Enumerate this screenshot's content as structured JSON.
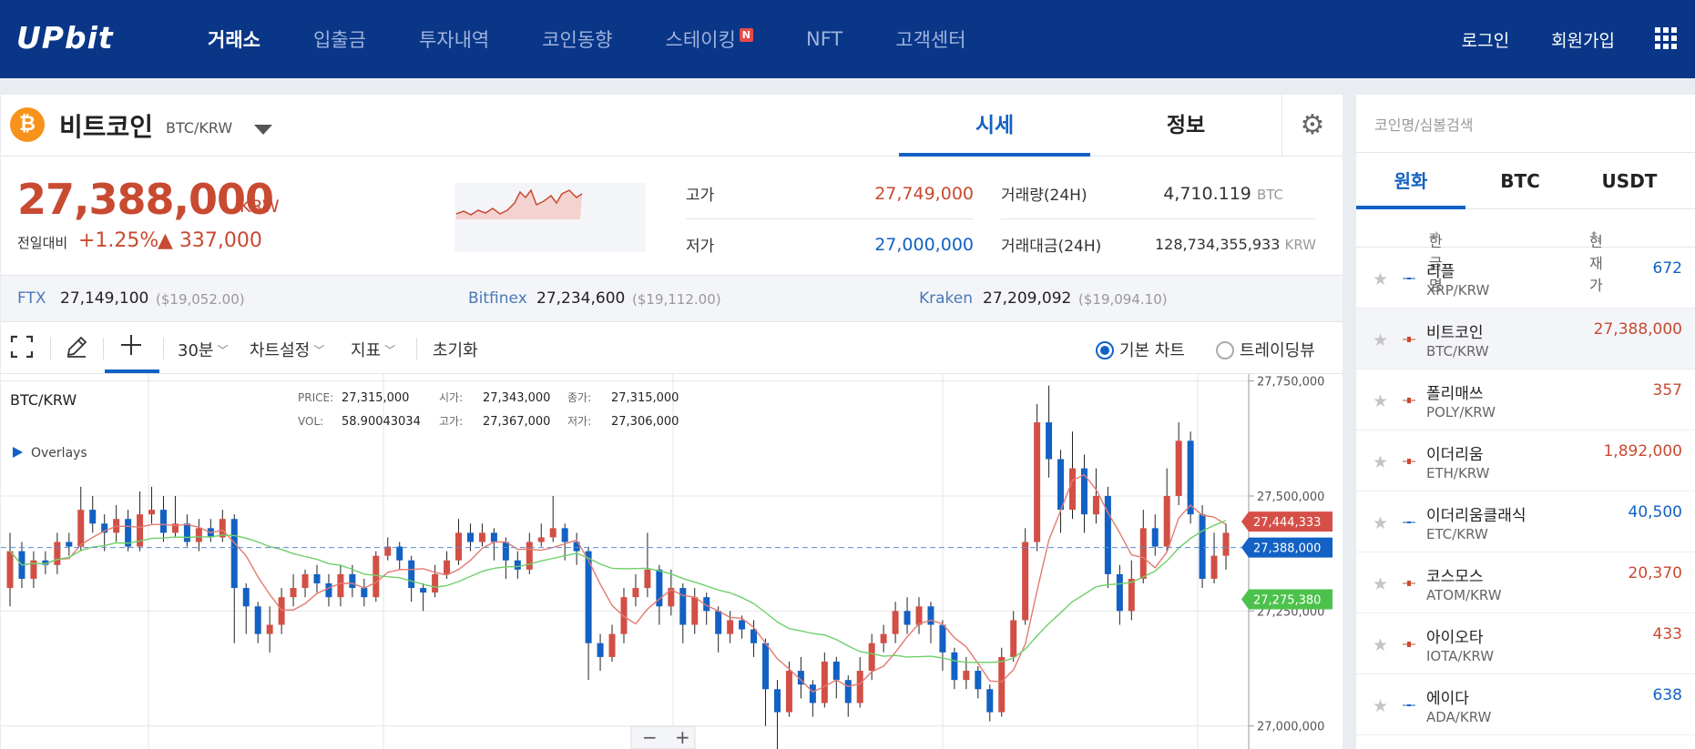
{
  "nav": {
    "logo": "UPbit",
    "items": [
      "거래소",
      "입출금",
      "투자내역",
      "코인동향",
      "스테이킹",
      "NFT",
      "고객센터"
    ],
    "badge": "N",
    "login": "로그인",
    "signup": "회원가입"
  },
  "coin": {
    "icon": "₿",
    "name": "비트코인",
    "pair": "BTC/KRW",
    "tab_price": "시세",
    "tab_info": "정보",
    "price": "27,388,000",
    "unit": "KRW",
    "change_label": "전일대비",
    "change_pct": "+1.25%",
    "change_amt": "▲ 337,000"
  },
  "stats": {
    "high_label": "고가",
    "high": "27,749,000",
    "low_label": "저가",
    "low": "27,000,000",
    "vol_label": "거래량(24H)",
    "vol": "4,710.119",
    "vol_unit": "BTC",
    "amt_label": "거래대금(24H)",
    "amt": "128,734,355,933",
    "amt_unit": "KRW"
  },
  "exchanges": [
    {
      "name": "FTX",
      "price": "27,149,100",
      "usd": "($19,052.00)"
    },
    {
      "name": "Bitfinex",
      "price": "27,234,600",
      "usd": "($19,112.00)"
    },
    {
      "name": "Kraken",
      "price": "27,209,092",
      "usd": "($19,094.10)"
    }
  ],
  "toolbar": {
    "interval": "30분",
    "chart_settings": "차트설정",
    "indicator": "지표",
    "reset": "초기화",
    "basic_chart": "기본 차트",
    "tradingview": "트레이딩뷰"
  },
  "chart_data": {
    "type": "candlestick",
    "pair_label": "BTC/KRW",
    "overlays_label": "Overlays",
    "info": {
      "price_label": "PRICE:",
      "price": "27,315,000",
      "vol_label": "VOL:",
      "vol": "58.90043034",
      "open_label": "시가:",
      "open": "27,343,000",
      "high_label": "고가:",
      "high": "27,367,000",
      "close_label": "종가:",
      "close": "27,315,000",
      "low_label": "저가:",
      "low": "27,306,000"
    },
    "y_ticks": [
      "27,750,000",
      "27,500,000",
      "27,250,000",
      "27,000,000"
    ],
    "y_values": [
      27750000,
      27500000,
      27250000,
      27000000
    ],
    "ylim": [
      26950000,
      27765000
    ],
    "markers": [
      {
        "label": "27,444,333",
        "value": 27444333,
        "color": "#d64f47"
      },
      {
        "label": "27,388,000",
        "value": 27388000,
        "color": "#1261c4"
      },
      {
        "label": "27,275,380",
        "value": 27275380,
        "color": "#4cc24c"
      }
    ],
    "current_price": 27388000,
    "candles": [
      [
        27300000,
        27380000,
        27420000,
        27260000
      ],
      [
        27380000,
        27320000,
        27400000,
        27300000
      ],
      [
        27320000,
        27360000,
        27380000,
        27300000
      ],
      [
        27360000,
        27350000,
        27380000,
        27330000
      ],
      [
        27350000,
        27400000,
        27420000,
        27330000
      ],
      [
        27400000,
        27390000,
        27420000,
        27370000
      ],
      [
        27390000,
        27470000,
        27520000,
        27380000
      ],
      [
        27470000,
        27440000,
        27500000,
        27420000
      ],
      [
        27440000,
        27420000,
        27460000,
        27380000
      ],
      [
        27420000,
        27450000,
        27480000,
        27400000
      ],
      [
        27450000,
        27390000,
        27470000,
        27380000
      ],
      [
        27390000,
        27460000,
        27510000,
        27380000
      ],
      [
        27460000,
        27470000,
        27520000,
        27440000
      ],
      [
        27470000,
        27420000,
        27500000,
        27400000
      ],
      [
        27420000,
        27440000,
        27500000,
        27410000
      ],
      [
        27440000,
        27400000,
        27460000,
        27390000
      ],
      [
        27400000,
        27430000,
        27450000,
        27380000
      ],
      [
        27430000,
        27410000,
        27450000,
        27400000
      ],
      [
        27410000,
        27450000,
        27470000,
        27400000
      ],
      [
        27450000,
        27300000,
        27460000,
        27180000
      ],
      [
        27300000,
        27260000,
        27310000,
        27200000
      ],
      [
        27260000,
        27200000,
        27270000,
        27180000
      ],
      [
        27200000,
        27220000,
        27260000,
        27160000
      ],
      [
        27220000,
        27280000,
        27300000,
        27200000
      ],
      [
        27280000,
        27300000,
        27330000,
        27260000
      ],
      [
        27300000,
        27330000,
        27340000,
        27280000
      ],
      [
        27330000,
        27310000,
        27350000,
        27290000
      ],
      [
        27310000,
        27280000,
        27330000,
        27260000
      ],
      [
        27280000,
        27330000,
        27350000,
        27260000
      ],
      [
        27330000,
        27300000,
        27350000,
        27280000
      ],
      [
        27300000,
        27280000,
        27320000,
        27260000
      ],
      [
        27280000,
        27370000,
        27380000,
        27270000
      ],
      [
        27370000,
        27390000,
        27410000,
        27360000
      ],
      [
        27390000,
        27360000,
        27400000,
        27340000
      ],
      [
        27360000,
        27300000,
        27370000,
        27270000
      ],
      [
        27300000,
        27290000,
        27310000,
        27250000
      ],
      [
        27290000,
        27330000,
        27350000,
        27280000
      ],
      [
        27330000,
        27360000,
        27380000,
        27320000
      ],
      [
        27360000,
        27420000,
        27450000,
        27350000
      ],
      [
        27420000,
        27400000,
        27440000,
        27380000
      ],
      [
        27400000,
        27420000,
        27440000,
        27390000
      ],
      [
        27420000,
        27400000,
        27430000,
        27360000
      ],
      [
        27400000,
        27360000,
        27410000,
        27320000
      ],
      [
        27360000,
        27340000,
        27380000,
        27320000
      ],
      [
        27340000,
        27400000,
        27420000,
        27330000
      ],
      [
        27400000,
        27410000,
        27440000,
        27390000
      ],
      [
        27410000,
        27430000,
        27500000,
        27400000
      ],
      [
        27430000,
        27400000,
        27440000,
        27360000
      ],
      [
        27400000,
        27380000,
        27420000,
        27350000
      ],
      [
        27380000,
        27180000,
        27390000,
        27100000
      ],
      [
        27180000,
        27150000,
        27200000,
        27120000
      ],
      [
        27150000,
        27200000,
        27220000,
        27140000
      ],
      [
        27200000,
        27280000,
        27300000,
        27180000
      ],
      [
        27280000,
        27300000,
        27330000,
        27260000
      ],
      [
        27300000,
        27340000,
        27420000,
        27280000
      ],
      [
        27340000,
        27260000,
        27350000,
        27220000
      ],
      [
        27260000,
        27300000,
        27340000,
        27240000
      ],
      [
        27300000,
        27220000,
        27310000,
        27180000
      ],
      [
        27220000,
        27280000,
        27300000,
        27200000
      ],
      [
        27280000,
        27250000,
        27290000,
        27220000
      ],
      [
        27250000,
        27200000,
        27260000,
        27160000
      ],
      [
        27200000,
        27230000,
        27250000,
        27180000
      ],
      [
        27230000,
        27210000,
        27240000,
        27190000
      ],
      [
        27210000,
        27180000,
        27230000,
        27150000
      ],
      [
        27180000,
        27080000,
        27190000,
        27000000
      ],
      [
        27080000,
        27030000,
        27100000,
        26950000
      ],
      [
        27030000,
        27120000,
        27140000,
        27020000
      ],
      [
        27120000,
        27090000,
        27150000,
        27060000
      ],
      [
        27090000,
        27050000,
        27100000,
        27020000
      ],
      [
        27050000,
        27140000,
        27160000,
        27040000
      ],
      [
        27140000,
        27100000,
        27150000,
        27060000
      ],
      [
        27100000,
        27050000,
        27110000,
        27020000
      ],
      [
        27050000,
        27120000,
        27150000,
        27040000
      ],
      [
        27120000,
        27180000,
        27200000,
        27100000
      ],
      [
        27180000,
        27200000,
        27220000,
        27160000
      ],
      [
        27200000,
        27250000,
        27270000,
        27180000
      ],
      [
        27250000,
        27220000,
        27280000,
        27200000
      ],
      [
        27220000,
        27260000,
        27280000,
        27200000
      ],
      [
        27260000,
        27220000,
        27270000,
        27180000
      ],
      [
        27220000,
        27160000,
        27230000,
        27120000
      ],
      [
        27160000,
        27100000,
        27170000,
        27080000
      ],
      [
        27100000,
        27120000,
        27150000,
        27080000
      ],
      [
        27120000,
        27080000,
        27130000,
        27060000
      ],
      [
        27080000,
        27030000,
        27090000,
        27010000
      ],
      [
        27030000,
        27150000,
        27170000,
        27020000
      ],
      [
        27150000,
        27230000,
        27250000,
        27140000
      ],
      [
        27230000,
        27400000,
        27430000,
        27220000
      ],
      [
        27400000,
        27660000,
        27700000,
        27380000
      ],
      [
        27660000,
        27580000,
        27740000,
        27540000
      ],
      [
        27580000,
        27470000,
        27600000,
        27420000
      ],
      [
        27470000,
        27560000,
        27640000,
        27450000
      ],
      [
        27560000,
        27460000,
        27590000,
        27420000
      ],
      [
        27460000,
        27500000,
        27560000,
        27440000
      ],
      [
        27500000,
        27330000,
        27520000,
        27300000
      ],
      [
        27330000,
        27250000,
        27350000,
        27220000
      ],
      [
        27250000,
        27320000,
        27360000,
        27230000
      ],
      [
        27320000,
        27430000,
        27470000,
        27310000
      ],
      [
        27430000,
        27390000,
        27460000,
        27370000
      ],
      [
        27390000,
        27500000,
        27560000,
        27380000
      ],
      [
        27500000,
        27620000,
        27660000,
        27480000
      ],
      [
        27620000,
        27460000,
        27640000,
        27440000
      ],
      [
        27460000,
        27320000,
        27480000,
        27300000
      ],
      [
        27320000,
        27370000,
        27420000,
        27310000
      ],
      [
        27370000,
        27420000,
        27440000,
        27340000
      ]
    ]
  },
  "sidebar": {
    "search_placeholder": "코인명/심볼검색",
    "tabs": [
      "원화",
      "BTC",
      "USDT"
    ],
    "col_name": "한글명",
    "col_price": "현재가",
    "coins": [
      {
        "name": "리플",
        "pair": "XRP/KRW",
        "price": "672",
        "up": false
      },
      {
        "name": "비트코인",
        "pair": "BTC/KRW",
        "price": "27,388,000",
        "up": true
      },
      {
        "name": "폴리매쓰",
        "pair": "POLY/KRW",
        "price": "357",
        "up": true
      },
      {
        "name": "이더리움",
        "pair": "ETH/KRW",
        "price": "1,892,000",
        "up": true
      },
      {
        "name": "이더리움클래식",
        "pair": "ETC/KRW",
        "price": "40,500",
        "up": false
      },
      {
        "name": "코스모스",
        "pair": "ATOM/KRW",
        "price": "20,370",
        "up": true
      },
      {
        "name": "아이오타",
        "pair": "IOTA/KRW",
        "price": "433",
        "up": true
      },
      {
        "name": "에이다",
        "pair": "ADA/KRW",
        "price": "638",
        "up": false
      }
    ]
  },
  "colors": {
    "up": "#c84a31",
    "down": "#1261c4",
    "nav_bg": "#093687"
  }
}
